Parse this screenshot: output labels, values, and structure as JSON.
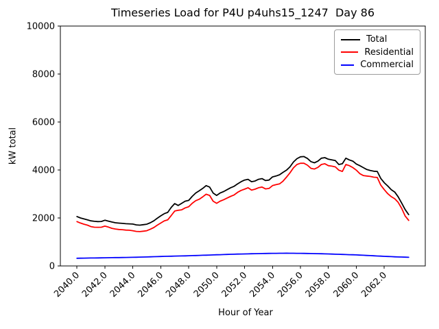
{
  "chart_data": {
    "type": "line",
    "title": "Timeseries Load for P4U p4uhs15_1247  Day 86",
    "xlabel": "Hour of Year",
    "ylabel": "kW total",
    "xlim": [
      2038.8125,
      2064.9375
    ],
    "ylim": [
      0,
      10000
    ],
    "grid": false,
    "legend": {
      "position": "upper right",
      "entries": [
        "Total",
        "Residential",
        "Commercial"
      ]
    },
    "xticks": [
      2040,
      2042,
      2044,
      2046,
      2048,
      2050,
      2052,
      2054,
      2056,
      2058,
      2060,
      2062
    ],
    "xtick_labels": [
      "2040.0",
      "2042.0",
      "2044.0",
      "2046.0",
      "2048.0",
      "2050.0",
      "2052.0",
      "2054.0",
      "2056.0",
      "2058.0",
      "2060.0",
      "2062.0"
    ],
    "yticks": [
      0,
      2000,
      4000,
      6000,
      8000,
      10000
    ],
    "ytick_labels": [
      "0",
      "2000",
      "4000",
      "6000",
      "8000",
      "10000"
    ],
    "x": [
      2040.0,
      2040.25,
      2040.5,
      2040.75,
      2041.0,
      2041.25,
      2041.5,
      2041.75,
      2042.0,
      2042.25,
      2042.5,
      2042.75,
      2043.0,
      2043.25,
      2043.5,
      2043.75,
      2044.0,
      2044.25,
      2044.5,
      2044.75,
      2045.0,
      2045.25,
      2045.5,
      2045.75,
      2046.0,
      2046.25,
      2046.5,
      2046.75,
      2047.0,
      2047.25,
      2047.5,
      2047.75,
      2048.0,
      2048.25,
      2048.5,
      2048.75,
      2049.0,
      2049.25,
      2049.5,
      2049.75,
      2050.0,
      2050.25,
      2050.5,
      2050.75,
      2051.0,
      2051.25,
      2051.5,
      2051.75,
      2052.0,
      2052.25,
      2052.5,
      2052.75,
      2053.0,
      2053.25,
      2053.5,
      2053.75,
      2054.0,
      2054.25,
      2054.5,
      2054.75,
      2055.0,
      2055.25,
      2055.5,
      2055.75,
      2056.0,
      2056.25,
      2056.5,
      2056.75,
      2057.0,
      2057.25,
      2057.5,
      2057.75,
      2058.0,
      2058.25,
      2058.5,
      2058.75,
      2059.0,
      2059.25,
      2059.5,
      2059.75,
      2060.0,
      2060.25,
      2060.5,
      2060.75,
      2061.0,
      2061.25,
      2061.5,
      2061.75,
      2062.0,
      2062.25,
      2062.5,
      2062.75,
      2063.0,
      2063.25,
      2063.5,
      2063.75
    ],
    "series": [
      {
        "name": "Total",
        "color": "#000000",
        "values": [
          2060,
          2000,
          1960,
          1920,
          1880,
          1860,
          1850,
          1855,
          1905,
          1870,
          1830,
          1800,
          1785,
          1775,
          1760,
          1755,
          1745,
          1710,
          1700,
          1720,
          1740,
          1800,
          1880,
          1990,
          2090,
          2180,
          2230,
          2440,
          2600,
          2520,
          2610,
          2700,
          2730,
          2900,
          3040,
          3130,
          3230,
          3350,
          3290,
          3040,
          2940,
          3040,
          3100,
          3180,
          3260,
          3320,
          3420,
          3510,
          3580,
          3610,
          3510,
          3540,
          3610,
          3640,
          3560,
          3580,
          3710,
          3750,
          3800,
          3900,
          3990,
          4130,
          4330,
          4470,
          4550,
          4560,
          4480,
          4350,
          4300,
          4370,
          4490,
          4515,
          4450,
          4420,
          4390,
          4230,
          4260,
          4490,
          4420,
          4370,
          4250,
          4180,
          4100,
          4020,
          3980,
          3950,
          3940,
          3650,
          3470,
          3330,
          3180,
          3080,
          2880,
          2620,
          2350,
          2140
        ]
      },
      {
        "name": "Residential",
        "color": "#ff0000",
        "values": [
          1850,
          1790,
          1740,
          1700,
          1640,
          1615,
          1610,
          1615,
          1660,
          1620,
          1570,
          1540,
          1520,
          1510,
          1495,
          1490,
          1470,
          1440,
          1430,
          1450,
          1470,
          1530,
          1600,
          1700,
          1790,
          1880,
          1920,
          2100,
          2290,
          2320,
          2340,
          2420,
          2470,
          2610,
          2720,
          2780,
          2880,
          2990,
          2940,
          2700,
          2610,
          2700,
          2760,
          2830,
          2900,
          2960,
          3070,
          3150,
          3200,
          3260,
          3160,
          3200,
          3260,
          3290,
          3210,
          3230,
          3350,
          3390,
          3420,
          3530,
          3700,
          3880,
          4090,
          4230,
          4280,
          4280,
          4200,
          4070,
          4040,
          4110,
          4230,
          4260,
          4180,
          4160,
          4130,
          3990,
          3940,
          4230,
          4180,
          4100,
          3990,
          3850,
          3770,
          3750,
          3730,
          3700,
          3690,
          3370,
          3180,
          3010,
          2890,
          2800,
          2650,
          2400,
          2080,
          1900
        ]
      },
      {
        "name": "Commercial",
        "color": "#0000ff",
        "values": [
          320,
          322,
          325,
          328,
          330,
          332,
          335,
          338,
          340,
          342,
          345,
          348,
          350,
          352,
          355,
          358,
          360,
          364,
          368,
          371,
          375,
          380,
          385,
          390,
          395,
          399,
          403,
          406,
          410,
          414,
          418,
          421,
          425,
          430,
          435,
          440,
          445,
          450,
          455,
          460,
          465,
          470,
          475,
          480,
          485,
          489,
          493,
          496,
          500,
          504,
          508,
          511,
          515,
          518,
          520,
          523,
          525,
          526,
          528,
          529,
          530,
          529,
          528,
          526,
          525,
          523,
          520,
          518,
          515,
          511,
          508,
          504,
          500,
          495,
          490,
          485,
          480,
          475,
          470,
          465,
          460,
          452,
          445,
          438,
          430,
          422,
          415,
          408,
          400,
          394,
          388,
          381,
          375,
          371,
          366,
          360
        ]
      }
    ]
  }
}
